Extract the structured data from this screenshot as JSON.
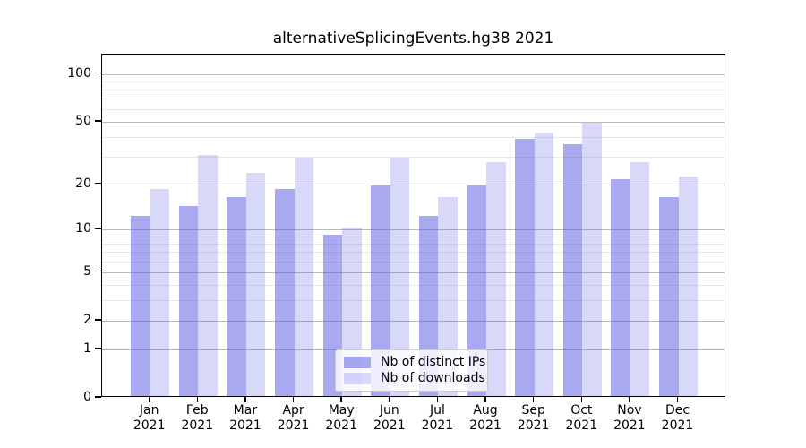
{
  "title": "alternativeSplicingEvents.hg38 2021",
  "chart_data": {
    "type": "bar",
    "title": "alternativeSplicingEvents.hg38 2021",
    "categories": [
      "Jan",
      "Feb",
      "Mar",
      "Apr",
      "May",
      "Jun",
      "Jul",
      "Aug",
      "Sep",
      "Oct",
      "Nov",
      "Dec"
    ],
    "year": "2021",
    "series": [
      {
        "name": "Nb of distinct IPs",
        "color": "rgba(91,91,228,0.52)",
        "values": [
          12,
          14,
          16,
          18,
          9,
          19,
          12,
          19,
          38,
          35,
          21,
          16
        ]
      },
      {
        "name": "Nb of downloads",
        "color": "rgba(91,91,228,0.235)",
        "values": [
          18,
          30,
          23,
          29,
          10,
          29,
          16,
          27,
          42,
          48,
          27,
          22
        ]
      }
    ],
    "yscale": "log1p",
    "ylim": [
      0,
      130
    ],
    "ytick_values": [
      100,
      50,
      20,
      10,
      5,
      2,
      1,
      0
    ],
    "ytick_labels": [
      "100",
      "50",
      "20",
      "10",
      "5",
      "2",
      "1",
      "0"
    ],
    "minor_gridline_values": [
      3,
      4,
      6,
      7,
      8,
      9,
      30,
      40,
      60,
      70,
      80,
      90
    ],
    "grid": true,
    "legend_position": "lower center",
    "xlabel": "",
    "ylabel": ""
  }
}
